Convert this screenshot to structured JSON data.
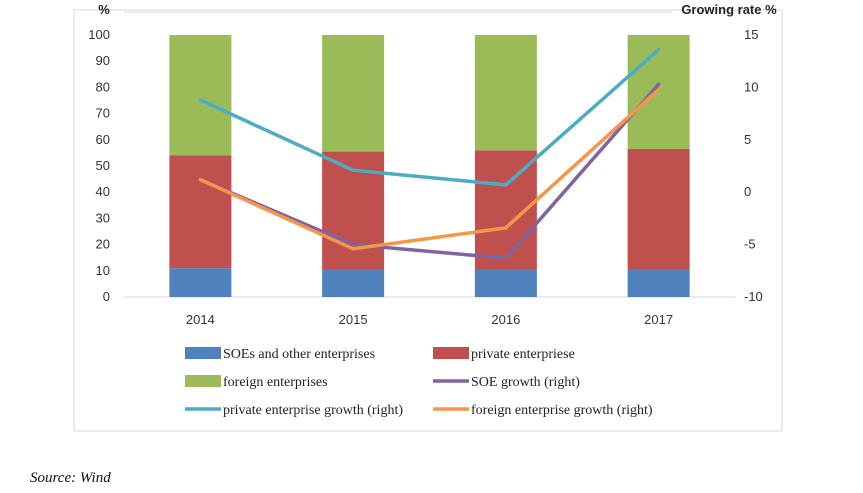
{
  "chart_data": {
    "type": "bar",
    "stacked": true,
    "categories": [
      "2014",
      "2015",
      "2016",
      "2017"
    ],
    "y_left_unit": "%",
    "y_right_unit": "Growing rate %",
    "y_left_ticks": [
      "0",
      "10",
      "20",
      "30",
      "40",
      "50",
      "60",
      "70",
      "80",
      "90",
      "100"
    ],
    "y_right_ticks": [
      "-10",
      "-5",
      "0",
      "5",
      "10",
      "15"
    ],
    "ylim_left": [
      0,
      100
    ],
    "ylim_right": [
      -10,
      15
    ],
    "bar_series": [
      {
        "name": "SOEs and other enterprises",
        "color": "#4f81bd",
        "values": [
          11,
          10.5,
          10.5,
          10.5
        ]
      },
      {
        "name": "private enterpriese",
        "color": "#c0504d",
        "values": [
          43,
          45,
          45.5,
          46
        ]
      },
      {
        "name": "foreign enterprises",
        "color": "#9bbb59",
        "values": [
          46,
          44.5,
          44,
          43.5
        ]
      }
    ],
    "line_series": [
      {
        "name": "SOE growth (right)",
        "color": "#8064a2",
        "values": [
          1.2,
          -5.0,
          -6.3,
          10.3
        ]
      },
      {
        "name": "private enterprise growth (right)",
        "color": "#4bacc6",
        "values": [
          8.8,
          2.1,
          0.7,
          13.6
        ]
      },
      {
        "name": "foreign enterprise growth (right)",
        "color": "#f79646",
        "values": [
          1.2,
          -5.4,
          -3.4,
          9.8
        ]
      }
    ],
    "legend_position": "bottom"
  },
  "footer": {
    "source_label": "Source",
    "source_value": "Wind"
  }
}
